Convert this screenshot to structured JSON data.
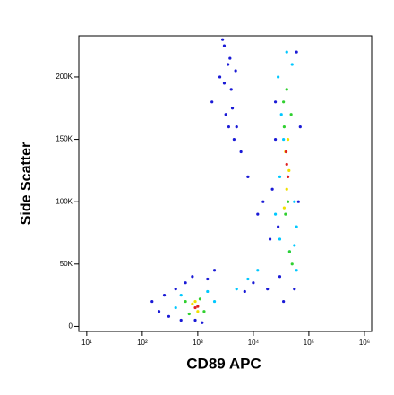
{
  "chart_data": {
    "type": "scatter",
    "xlabel": "CD89 APC",
    "ylabel": "Side Scatter",
    "xscale": "log",
    "xlim": [
      7.2,
      1350000
    ],
    "ylim": [
      -4000,
      233000
    ],
    "xticks": [
      {
        "value": 10,
        "label": "10¹"
      },
      {
        "value": 100,
        "label": "10²"
      },
      {
        "value": 1000,
        "label": "10³"
      },
      {
        "value": 10000,
        "label": "10⁴"
      },
      {
        "value": 100000,
        "label": "10⁵"
      },
      {
        "value": 1000000,
        "label": "10⁶"
      }
    ],
    "yticks": [
      0,
      {
        "value": 50000,
        "label": "50K"
      },
      {
        "value": 100000,
        "label": "100K"
      },
      {
        "value": 150000,
        "label": "150K"
      },
      {
        "value": 200000,
        "label": "200K"
      }
    ],
    "series": [
      {
        "color": "#1a1ad6",
        "x": [
          200,
          300,
          250,
          400,
          150,
          3000,
          2500,
          1800,
          5000,
          8000,
          12000,
          6000,
          15000,
          20000,
          25000,
          3500,
          4000,
          3200,
          4500,
          2800,
          3800,
          4200,
          3000,
          3600,
          4800,
          25000,
          22000,
          60000,
          70000,
          28000,
          30000,
          65000,
          55000,
          18000,
          35000,
          800,
          1500,
          600,
          10000,
          7000,
          500,
          1200,
          2000,
          900
        ],
        "values": [
          12000,
          8000,
          25000,
          30000,
          20000,
          225000,
          200000,
          180000,
          160000,
          120000,
          90000,
          140000,
          100000,
          70000,
          180000,
          210000,
          190000,
          170000,
          150000,
          230000,
          215000,
          175000,
          195000,
          160000,
          205000,
          150000,
          110000,
          220000,
          160000,
          80000,
          40000,
          100000,
          30000,
          30000,
          20000,
          40000,
          38000,
          35000,
          35000,
          28000,
          5000,
          3000,
          45000,
          5000
        ]
      },
      {
        "color": "#00c8ff",
        "x": [
          400,
          500,
          1500,
          2000,
          5000,
          8000,
          12000,
          30000,
          25000,
          55000,
          60000,
          28000,
          32000,
          50000,
          45000,
          30000,
          40000,
          55000,
          35000,
          60000
        ],
        "values": [
          15000,
          25000,
          28000,
          20000,
          30000,
          38000,
          45000,
          70000,
          90000,
          65000,
          45000,
          200000,
          170000,
          210000,
          60000,
          120000,
          220000,
          100000,
          150000,
          80000
        ]
      },
      {
        "color": "#30d030",
        "x": [
          600,
          700,
          1300,
          1100,
          35000,
          40000,
          45000,
          38000,
          42000,
          50000,
          48000,
          36000
        ],
        "values": [
          20000,
          10000,
          12000,
          22000,
          180000,
          190000,
          60000,
          90000,
          100000,
          50000,
          170000,
          160000
        ]
      },
      {
        "color": "#f0e000",
        "x": [
          800,
          1000,
          900,
          38000,
          42000,
          40000,
          44000,
          36000
        ],
        "values": [
          18000,
          12000,
          20000,
          140000,
          150000,
          110000,
          125000,
          95000
        ]
      },
      {
        "color": "#e02020",
        "x": [
          900,
          1000,
          40000,
          42000,
          39000
        ],
        "values": [
          15000,
          16000,
          130000,
          120000,
          140000
        ]
      }
    ]
  }
}
